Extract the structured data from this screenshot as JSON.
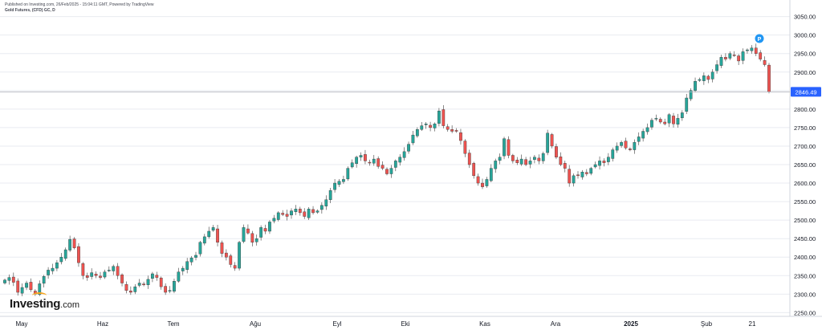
{
  "header": {
    "published": "Published on Investing.com, 26/Feb/2025 - 15:04:11 GMT, Powered by TradingView",
    "symbol": "Gold Futures, (CFD) GC, D"
  },
  "watermark": {
    "brand": "Investing",
    "domain": ".com"
  },
  "colors": {
    "up": "#26a69a",
    "down": "#ef5350",
    "price_tag": "#2962ff",
    "marker": "#2196f3",
    "grid": "#e9ebf1"
  },
  "chart_data": {
    "type": "candlestick",
    "title": "Gold Futures, (CFD) GC, D",
    "x_labels": [
      "May",
      "Haz",
      "Tem",
      "Ağu",
      "Eyl",
      "Eki",
      "Kas",
      "Ara",
      "2025",
      "Şub",
      "21"
    ],
    "x_label_bold": "2025",
    "y_ticks": [
      2250,
      2300,
      2350,
      2400,
      2450,
      2500,
      2550,
      2600,
      2650,
      2700,
      2750,
      2800,
      2850,
      2900,
      2950,
      3000,
      3050
    ],
    "y_tick_labels": [
      "2250.00",
      "2300.00",
      "2350.00",
      "2400.00",
      "2450.00",
      "2500.00",
      "2550.00",
      "2600.00",
      "2650.00",
      "2700.00",
      "2750.00",
      "2800.00",
      "2850.00",
      "2900.00",
      "2950.00",
      "3000.00",
      "3050.00"
    ],
    "ylim": [
      2240,
      3060
    ],
    "last_price": 2846.49,
    "last_price_label": "2846.49",
    "marker_label": "P",
    "closes": [
      2338,
      2345,
      2332,
      2305,
      2318,
      2330,
      2312,
      2300,
      2328,
      2348,
      2365,
      2370,
      2385,
      2400,
      2420,
      2448,
      2425,
      2385,
      2350,
      2345,
      2358,
      2350,
      2345,
      2360,
      2365,
      2375,
      2350,
      2330,
      2310,
      2305,
      2320,
      2330,
      2325,
      2340,
      2355,
      2345,
      2320,
      2305,
      2310,
      2335,
      2360,
      2370,
      2388,
      2398,
      2405,
      2440,
      2455,
      2470,
      2480,
      2440,
      2410,
      2400,
      2380,
      2370,
      2440,
      2480,
      2465,
      2440,
      2450,
      2480,
      2470,
      2495,
      2505,
      2520,
      2515,
      2510,
      2525,
      2530,
      2520,
      2510,
      2530,
      2520,
      2525,
      2540,
      2555,
      2580,
      2600,
      2605,
      2610,
      2640,
      2655,
      2670,
      2675,
      2660,
      2655,
      2665,
      2645,
      2640,
      2625,
      2640,
      2660,
      2670,
      2685,
      2705,
      2730,
      2745,
      2755,
      2760,
      2750,
      2760,
      2795,
      2755,
      2745,
      2740,
      2740,
      2715,
      2680,
      2650,
      2620,
      2600,
      2590,
      2610,
      2640,
      2660,
      2670,
      2720,
      2675,
      2660,
      2655,
      2665,
      2650,
      2660,
      2670,
      2660,
      2680,
      2735,
      2700,
      2670,
      2650,
      2640,
      2600,
      2620,
      2620,
      2630,
      2625,
      2640,
      2650,
      2660,
      2655,
      2670,
      2690,
      2700,
      2710,
      2695,
      2690,
      2710,
      2725,
      2740,
      2750,
      2770,
      2775,
      2765,
      2760,
      2785,
      2760,
      2775,
      2790,
      2830,
      2850,
      2875,
      2880,
      2890,
      2880,
      2900,
      2920,
      2940,
      2935,
      2950,
      2945,
      2930,
      2955,
      2960,
      2965,
      2950,
      2935,
      2920,
      2846.49
    ]
  }
}
